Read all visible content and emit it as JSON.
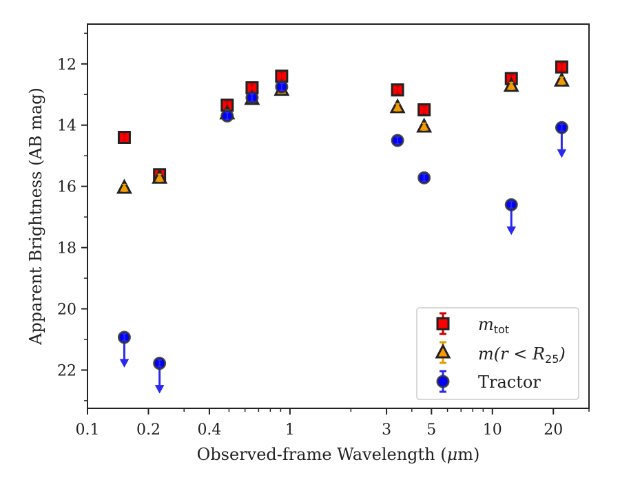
{
  "chart_data": {
    "type": "scatter",
    "xlabel_main": "Observed-frame Wavelength (",
    "xlabel_unit": "μ",
    "xlabel_tail": "m)",
    "ylabel": "Apparent Brightness (AB mag)",
    "xscale": "log",
    "xlim": [
      0.1,
      30
    ],
    "ylim": [
      23.25,
      10.7
    ],
    "y_inverted": true,
    "grid": false,
    "legend_position": "lower-right",
    "x_major_ticks": [
      0.1,
      0.2,
      0.4,
      1,
      3,
      5,
      10,
      20
    ],
    "x_tick_labels": [
      "0.1",
      "0.2",
      "0.4",
      "1",
      "3",
      "5",
      "10",
      "20"
    ],
    "y_ticks": [
      12,
      14,
      16,
      18,
      20,
      22
    ],
    "y_tick_labels": [
      "12",
      "14",
      "16",
      "18",
      "20",
      "22"
    ],
    "series": [
      {
        "name_base": "m",
        "name_sub": "tot",
        "marker": "square",
        "color": "#ff0000",
        "edgecolor": "#222222",
        "errcolor": "#cc0000",
        "points": [
          {
            "x": 0.152,
            "y": 14.4
          },
          {
            "x": 0.227,
            "y": 15.62
          },
          {
            "x": 0.49,
            "y": 13.35
          },
          {
            "x": 0.65,
            "y": 12.78
          },
          {
            "x": 0.91,
            "y": 12.4
          },
          {
            "x": 3.4,
            "y": 12.85
          },
          {
            "x": 4.6,
            "y": 13.5
          },
          {
            "x": 12.4,
            "y": 12.48
          },
          {
            "x": 22.0,
            "y": 12.1
          }
        ]
      },
      {
        "name_base": "m(r < R",
        "name_sub": "25",
        "name_tail": ")",
        "marker": "triangle",
        "color": "#ff9900",
        "edgecolor": "#222222",
        "errcolor": "#e0a000",
        "points": [
          {
            "x": 0.152,
            "y": 16.05
          },
          {
            "x": 0.227,
            "y": 15.72
          },
          {
            "x": 0.49,
            "y": 13.62
          },
          {
            "x": 0.65,
            "y": 13.15
          },
          {
            "x": 0.91,
            "y": 12.85
          },
          {
            "x": 3.4,
            "y": 13.42
          },
          {
            "x": 4.6,
            "y": 14.05
          },
          {
            "x": 12.4,
            "y": 12.72
          },
          {
            "x": 22.0,
            "y": 12.55
          }
        ]
      },
      {
        "name": "Tractor",
        "marker": "circle",
        "color": "#0000ff",
        "edgecolor": "#333333",
        "errcolor": "#2a2aee",
        "points": [
          {
            "x": 0.152,
            "y": 20.93,
            "upper_limit": true
          },
          {
            "x": 0.227,
            "y": 21.78,
            "upper_limit": true
          },
          {
            "x": 0.49,
            "y": 13.7
          },
          {
            "x": 0.65,
            "y": 13.1
          },
          {
            "x": 0.91,
            "y": 12.75
          },
          {
            "x": 3.4,
            "y": 14.5
          },
          {
            "x": 4.6,
            "y": 15.72
          },
          {
            "x": 12.4,
            "y": 16.6,
            "upper_limit": true
          },
          {
            "x": 22.0,
            "y": 14.08,
            "upper_limit": true
          }
        ]
      }
    ]
  }
}
